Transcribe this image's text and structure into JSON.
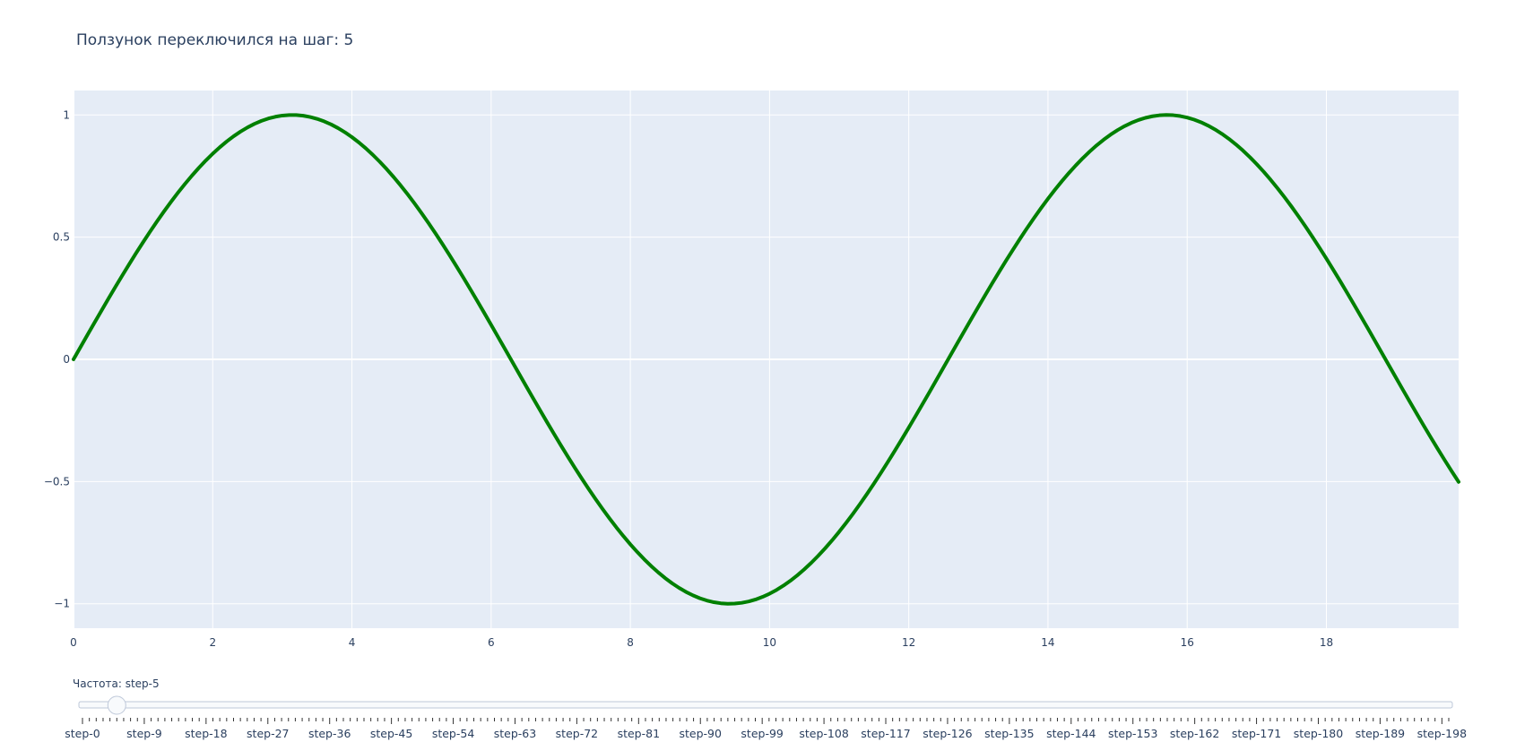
{
  "chart_data": {
    "type": "line",
    "title": "Ползунок переключился на шаг: 5",
    "xlabel": "",
    "ylabel": "",
    "xlim": [
      0,
      19.9
    ],
    "ylim": [
      -1.1,
      1.1
    ],
    "x_ticks": [
      0,
      2,
      4,
      6,
      8,
      10,
      12,
      14,
      16,
      18
    ],
    "x_tick_labels": [
      "0",
      "2",
      "4",
      "6",
      "8",
      "10",
      "12",
      "14",
      "16",
      "18"
    ],
    "y_ticks": [
      1,
      0.5,
      0,
      -0.5,
      -1
    ],
    "y_tick_labels": [
      "1",
      "0.5",
      "0",
      "−0.5",
      "−1"
    ],
    "grid": true,
    "series": [
      {
        "color": "#008000",
        "line_width": 4,
        "x_range": [
          0,
          19.9
        ],
        "x_step": 0.1,
        "function": "sin(0.5 * x)"
      }
    ]
  },
  "slider": {
    "prefix": "Частота: ",
    "current_value": "step-5",
    "active_step": 5,
    "step_count": 200,
    "labeled_steps": [
      "step-0",
      "step-9",
      "step-18",
      "step-27",
      "step-36",
      "step-45",
      "step-54",
      "step-63",
      "step-72",
      "step-81",
      "step-90",
      "step-99",
      "step-108",
      "step-117",
      "step-126",
      "step-135",
      "step-144",
      "step-153",
      "step-162",
      "step-171",
      "step-180",
      "step-189",
      "step-198"
    ],
    "labeled_step_index": [
      0,
      9,
      18,
      27,
      36,
      45,
      54,
      63,
      72,
      81,
      90,
      99,
      108,
      117,
      126,
      135,
      144,
      153,
      162,
      171,
      180,
      189,
      198
    ]
  },
  "colors": {
    "plot_bg": "#e5ecf6",
    "grid": "#ffffff",
    "line": "#008000",
    "text": "#2a3f5f",
    "slider_rail": "#f8fafc",
    "slider_border": "#bec8d9",
    "slider_handle": "#f8fafc"
  }
}
